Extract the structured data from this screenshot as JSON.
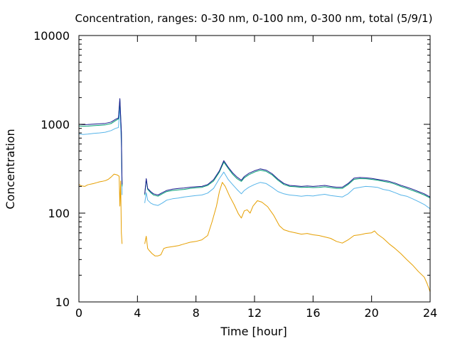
{
  "chart_data": {
    "type": "line",
    "title": "Concentration, ranges: 0-30 nm, 0-100 nm, 0-300 nm, total (5/9/1)",
    "xlabel": "Time [hour]",
    "ylabel": "Concentration",
    "xlim": [
      0,
      24
    ],
    "ylim": [
      10,
      10000
    ],
    "yscale": "log",
    "grid": false,
    "legend": "none",
    "xticks": [
      0,
      4,
      8,
      12,
      16,
      20,
      24
    ],
    "xtick_labels": [
      "0",
      "4",
      "8",
      "12",
      "16",
      "20",
      "24"
    ],
    "yticks": [
      10,
      100,
      1000,
      10000
    ],
    "ytick_labels": [
      "10",
      "100",
      "1000",
      "10000"
    ],
    "series": [
      {
        "color": "#e69f00",
        "segments": [
          [
            [
              0.0,
              210
            ],
            [
              0.2,
              202
            ],
            [
              0.4,
              200
            ],
            [
              0.6,
              208
            ],
            [
              0.8,
              212
            ],
            [
              1.0,
              215
            ],
            [
              1.2,
              220
            ],
            [
              1.4,
              225
            ],
            [
              1.6,
              228
            ],
            [
              1.8,
              232
            ],
            [
              2.0,
              240
            ],
            [
              2.2,
              255
            ],
            [
              2.4,
              275
            ],
            [
              2.6,
              270
            ],
            [
              2.75,
              260
            ],
            [
              2.8,
              120
            ],
            [
              2.85,
              230
            ],
            [
              2.9,
              60
            ],
            [
              2.95,
              45
            ]
          ],
          [
            [
              4.5,
              45
            ],
            [
              4.6,
              55
            ],
            [
              4.7,
              40
            ],
            [
              4.8,
              38
            ],
            [
              5.0,
              35
            ],
            [
              5.2,
              33
            ],
            [
              5.4,
              33
            ],
            [
              5.6,
              34
            ],
            [
              5.8,
              40
            ],
            [
              6.0,
              41
            ],
            [
              6.4,
              42
            ],
            [
              6.8,
              43
            ],
            [
              7.2,
              45
            ],
            [
              7.6,
              47
            ],
            [
              8.0,
              48
            ],
            [
              8.4,
              50
            ],
            [
              8.8,
              56
            ],
            [
              9.1,
              80
            ],
            [
              9.4,
              120
            ],
            [
              9.6,
              175
            ],
            [
              9.8,
              222
            ],
            [
              10.0,
              200
            ],
            [
              10.3,
              155
            ],
            [
              10.6,
              125
            ],
            [
              10.9,
              98
            ],
            [
              11.1,
              88
            ],
            [
              11.3,
              106
            ],
            [
              11.5,
              109
            ],
            [
              11.7,
              100
            ],
            [
              11.9,
              120
            ],
            [
              12.2,
              138
            ],
            [
              12.5,
              133
            ],
            [
              12.9,
              118
            ],
            [
              13.3,
              95
            ],
            [
              13.7,
              72
            ],
            [
              14.0,
              65
            ],
            [
              14.4,
              62
            ],
            [
              14.8,
              60
            ],
            [
              15.2,
              58
            ],
            [
              15.6,
              59
            ],
            [
              16.0,
              57
            ],
            [
              16.4,
              56
            ],
            [
              16.8,
              54
            ],
            [
              17.2,
              52
            ],
            [
              17.6,
              48
            ],
            [
              18.0,
              46
            ],
            [
              18.4,
              50
            ],
            [
              18.8,
              56
            ],
            [
              19.2,
              57
            ],
            [
              19.6,
              59
            ],
            [
              20.0,
              60
            ],
            [
              20.2,
              63
            ],
            [
              20.4,
              58
            ],
            [
              20.8,
              52
            ],
            [
              21.2,
              45
            ],
            [
              21.6,
              40
            ],
            [
              22.0,
              35
            ],
            [
              22.4,
              30
            ],
            [
              22.8,
              26
            ],
            [
              23.2,
              22
            ],
            [
              23.6,
              19
            ],
            [
              23.8,
              16
            ],
            [
              24.0,
              13
            ]
          ]
        ]
      },
      {
        "color": "#56b4e9",
        "segments": [
          [
            [
              0.0,
              780
            ],
            [
              0.3,
              770
            ],
            [
              0.6,
              775
            ],
            [
              1.0,
              790
            ],
            [
              1.4,
              800
            ],
            [
              1.8,
              815
            ],
            [
              2.2,
              850
            ],
            [
              2.5,
              900
            ],
            [
              2.7,
              920
            ],
            [
              2.8,
              1600
            ],
            [
              2.9,
              600
            ],
            [
              2.95,
              160
            ]
          ],
          [
            [
              4.5,
              130
            ],
            [
              4.6,
              170
            ],
            [
              4.7,
              140
            ],
            [
              4.9,
              130
            ],
            [
              5.1,
              125
            ],
            [
              5.4,
              122
            ],
            [
              5.7,
              130
            ],
            [
              6.0,
              140
            ],
            [
              6.4,
              145
            ],
            [
              6.8,
              148
            ],
            [
              7.2,
              152
            ],
            [
              7.6,
              155
            ],
            [
              8.0,
              158
            ],
            [
              8.4,
              160
            ],
            [
              8.8,
              168
            ],
            [
              9.2,
              190
            ],
            [
              9.6,
              245
            ],
            [
              9.9,
              290
            ],
            [
              10.2,
              240
            ],
            [
              10.5,
              210
            ],
            [
              10.8,
              185
            ],
            [
              11.1,
              165
            ],
            [
              11.3,
              180
            ],
            [
              11.6,
              195
            ],
            [
              12.0,
              210
            ],
            [
              12.4,
              222
            ],
            [
              12.8,
              215
            ],
            [
              13.2,
              195
            ],
            [
              13.6,
              175
            ],
            [
              14.0,
              165
            ],
            [
              14.4,
              160
            ],
            [
              14.8,
              158
            ],
            [
              15.2,
              155
            ],
            [
              15.6,
              158
            ],
            [
              16.0,
              156
            ],
            [
              16.4,
              160
            ],
            [
              16.8,
              163
            ],
            [
              17.2,
              158
            ],
            [
              17.6,
              155
            ],
            [
              18.0,
              152
            ],
            [
              18.4,
              165
            ],
            [
              18.8,
              190
            ],
            [
              19.2,
              195
            ],
            [
              19.6,
              200
            ],
            [
              20.0,
              198
            ],
            [
              20.4,
              195
            ],
            [
              20.8,
              185
            ],
            [
              21.2,
              180
            ],
            [
              21.6,
              170
            ],
            [
              22.0,
              160
            ],
            [
              22.4,
              155
            ],
            [
              22.8,
              145
            ],
            [
              23.2,
              135
            ],
            [
              23.6,
              125
            ],
            [
              24.0,
              112
            ]
          ]
        ]
      },
      {
        "color": "#009e73",
        "segments": [
          [
            [
              0.0,
              960
            ],
            [
              0.3,
              950
            ],
            [
              0.6,
              955
            ],
            [
              1.0,
              965
            ],
            [
              1.4,
              975
            ],
            [
              1.8,
              985
            ],
            [
              2.2,
              1020
            ],
            [
              2.5,
              1100
            ],
            [
              2.7,
              1150
            ],
            [
              2.8,
              1900
            ],
            [
              2.9,
              800
            ],
            [
              2.95,
              200
            ]
          ],
          [
            [
              4.5,
              160
            ],
            [
              4.6,
              240
            ],
            [
              4.7,
              185
            ],
            [
              4.9,
              170
            ],
            [
              5.1,
              160
            ],
            [
              5.4,
              155
            ],
            [
              5.7,
              165
            ],
            [
              6.0,
              175
            ],
            [
              6.4,
              180
            ],
            [
              6.8,
              183
            ],
            [
              7.2,
              185
            ],
            [
              7.6,
              190
            ],
            [
              8.0,
              193
            ],
            [
              8.4,
              195
            ],
            [
              8.8,
              205
            ],
            [
              9.2,
              230
            ],
            [
              9.6,
              290
            ],
            [
              9.9,
              375
            ],
            [
              10.2,
              320
            ],
            [
              10.5,
              275
            ],
            [
              10.8,
              245
            ],
            [
              11.1,
              228
            ],
            [
              11.3,
              250
            ],
            [
              11.6,
              270
            ],
            [
              12.0,
              290
            ],
            [
              12.4,
              305
            ],
            [
              12.8,
              295
            ],
            [
              13.2,
              270
            ],
            [
              13.6,
              235
            ],
            [
              14.0,
              210
            ],
            [
              14.4,
              200
            ],
            [
              14.8,
              198
            ],
            [
              15.2,
              195
            ],
            [
              15.6,
              196
            ],
            [
              16.0,
              194
            ],
            [
              16.4,
              195
            ],
            [
              16.8,
              198
            ],
            [
              17.2,
              194
            ],
            [
              17.6,
              190
            ],
            [
              18.0,
              190
            ],
            [
              18.4,
              210
            ],
            [
              18.8,
              240
            ],
            [
              19.2,
              245
            ],
            [
              19.6,
              244
            ],
            [
              20.0,
              240
            ],
            [
              20.4,
              235
            ],
            [
              20.8,
              228
            ],
            [
              21.2,
              222
            ],
            [
              21.6,
              212
            ],
            [
              22.0,
              200
            ],
            [
              22.4,
              190
            ],
            [
              22.8,
              180
            ],
            [
              23.2,
              170
            ],
            [
              23.6,
              160
            ],
            [
              24.0,
              148
            ]
          ]
        ]
      },
      {
        "color": "#1a1a8f",
        "segments": [
          [
            [
              0.0,
              1000
            ],
            [
              0.3,
              990
            ],
            [
              0.6,
              995
            ],
            [
              1.0,
              1005
            ],
            [
              1.4,
              1015
            ],
            [
              1.8,
              1025
            ],
            [
              2.2,
              1060
            ],
            [
              2.5,
              1140
            ],
            [
              2.7,
              1180
            ],
            [
              2.8,
              1950
            ],
            [
              2.9,
              820
            ],
            [
              2.95,
              210
            ]
          ],
          [
            [
              4.5,
              165
            ],
            [
              4.6,
              245
            ],
            [
              4.7,
              190
            ],
            [
              4.9,
              175
            ],
            [
              5.1,
              165
            ],
            [
              5.4,
              160
            ],
            [
              5.7,
              170
            ],
            [
              6.0,
              180
            ],
            [
              6.4,
              186
            ],
            [
              6.8,
              190
            ],
            [
              7.2,
              192
            ],
            [
              7.6,
              196
            ],
            [
              8.0,
              198
            ],
            [
              8.4,
              200
            ],
            [
              8.8,
              210
            ],
            [
              9.2,
              238
            ],
            [
              9.6,
              300
            ],
            [
              9.9,
              390
            ],
            [
              10.2,
              330
            ],
            [
              10.5,
              285
            ],
            [
              10.8,
              255
            ],
            [
              11.1,
              235
            ],
            [
              11.3,
              258
            ],
            [
              11.6,
              280
            ],
            [
              12.0,
              300
            ],
            [
              12.4,
              315
            ],
            [
              12.8,
              305
            ],
            [
              13.2,
              278
            ],
            [
              13.6,
              242
            ],
            [
              14.0,
              216
            ],
            [
              14.4,
              205
            ],
            [
              14.8,
              203
            ],
            [
              15.2,
              200
            ],
            [
              15.6,
              202
            ],
            [
              16.0,
              200
            ],
            [
              16.4,
              202
            ],
            [
              16.8,
              205
            ],
            [
              17.2,
              200
            ],
            [
              17.6,
              196
            ],
            [
              18.0,
              196
            ],
            [
              18.4,
              216
            ],
            [
              18.8,
              248
            ],
            [
              19.2,
              252
            ],
            [
              19.6,
              250
            ],
            [
              20.0,
              246
            ],
            [
              20.4,
              240
            ],
            [
              20.8,
              234
            ],
            [
              21.2,
              228
            ],
            [
              21.6,
              218
            ],
            [
              22.0,
              206
            ],
            [
              22.4,
              196
            ],
            [
              22.8,
              186
            ],
            [
              23.2,
              175
            ],
            [
              23.6,
              165
            ],
            [
              24.0,
              152
            ]
          ]
        ]
      }
    ]
  }
}
